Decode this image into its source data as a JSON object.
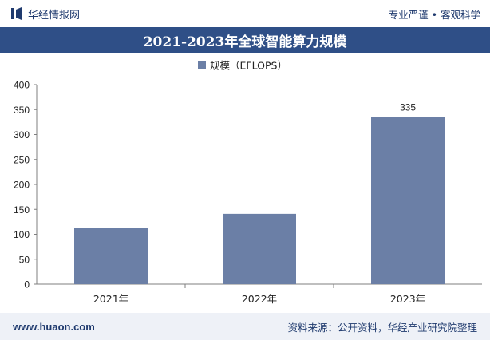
{
  "header": {
    "brand": "华经情报网",
    "tagline": "专业严谨 • 客观科学"
  },
  "chart_data": {
    "type": "bar",
    "title": "2021-2023年全球智能算力规模",
    "categories": [
      "2021年",
      "2022年",
      "2023年"
    ],
    "series": [
      {
        "name": "规模（EFLOPS）",
        "values": [
          112,
          141,
          335
        ]
      }
    ],
    "data_labels": [
      "",
      "",
      "335"
    ],
    "xlabel": "",
    "ylabel": "",
    "ylim": [
      0,
      400
    ],
    "yticks": [
      0,
      50,
      100,
      150,
      200,
      250,
      300,
      350,
      400
    ],
    "grid": false,
    "legend_position": "top-center",
    "bar_color": "#6b7fa6"
  },
  "footer": {
    "site": "www.huaon.com",
    "source": "资料来源：公开资料，华经产业研究院整理"
  }
}
